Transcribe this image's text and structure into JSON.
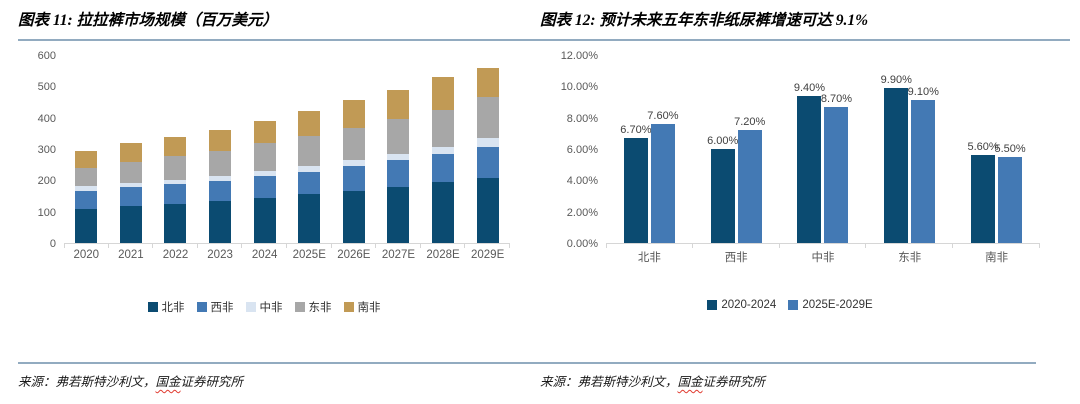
{
  "page": {
    "background": "#ffffff",
    "separator_color": "#92abc0"
  },
  "chart_data": [
    {
      "type": "bar",
      "subtype": "stacked",
      "title": "图表 11: 拉拉裤市场规模（百万美元）",
      "categories": [
        "2020",
        "2021",
        "2022",
        "2023",
        "2024",
        "2025E",
        "2026E",
        "2027E",
        "2028E",
        "2029E"
      ],
      "series": [
        {
          "name": "北非",
          "color": "#0b4b71",
          "values": [
            110,
            118,
            125,
            133,
            143,
            155,
            167,
            180,
            194,
            206
          ]
        },
        {
          "name": "西非",
          "color": "#4379b4",
          "values": [
            57,
            60,
            62,
            65,
            70,
            73,
            78,
            84,
            90,
            100
          ]
        },
        {
          "name": "中非",
          "color": "#d9e4f1",
          "values": [
            15,
            14,
            15,
            16,
            17,
            18,
            19,
            20,
            22,
            28
          ]
        },
        {
          "name": "东非",
          "color": "#a7a7a7",
          "values": [
            57,
            68,
            75,
            80,
            88,
            95,
            103,
            112,
            120,
            131
          ]
        },
        {
          "name": "南非",
          "color": "#c19a55",
          "values": [
            55,
            60,
            63,
            66,
            72,
            79,
            88,
            94,
            104,
            95
          ]
        }
      ],
      "y_ticks": [
        0,
        100,
        200,
        300,
        400,
        500,
        600
      ],
      "ylim": [
        0,
        600
      ],
      "grid": false,
      "legend_position": "bottom",
      "source_pre": "来源：弗若斯特沙利文，",
      "source_wavy": "国金",
      "source_post": "证券研究所"
    },
    {
      "type": "bar",
      "subtype": "grouped",
      "title": "图表 12: 预计未来五年东非纸尿裤增速可达 9.1%",
      "categories": [
        "北非",
        "西非",
        "中非",
        "东非",
        "南非"
      ],
      "series": [
        {
          "name": "2020-2024",
          "color": "#0b4b71",
          "values": [
            6.7,
            6.0,
            9.4,
            9.9,
            5.6
          ],
          "labels": [
            "6.70%",
            "6.00%",
            "9.40%",
            "9.90%",
            "5.60%"
          ]
        },
        {
          "name": "2025E-2029E",
          "color": "#4379b4",
          "values": [
            7.6,
            7.2,
            8.7,
            9.1,
            5.5
          ],
          "labels": [
            "7.60%",
            "7.20%",
            "8.70%",
            "9.10%",
            "5.50%"
          ]
        }
      ],
      "y_ticks": [
        "0.00%",
        "2.00%",
        "4.00%",
        "6.00%",
        "8.00%",
        "10.00%",
        "12.00%"
      ],
      "ylim": [
        0,
        12
      ],
      "grid": false,
      "legend_position": "bottom",
      "source_pre": "来源：弗若斯特沙利文，",
      "source_wavy": "国金",
      "source_post": "证券研究所"
    }
  ]
}
